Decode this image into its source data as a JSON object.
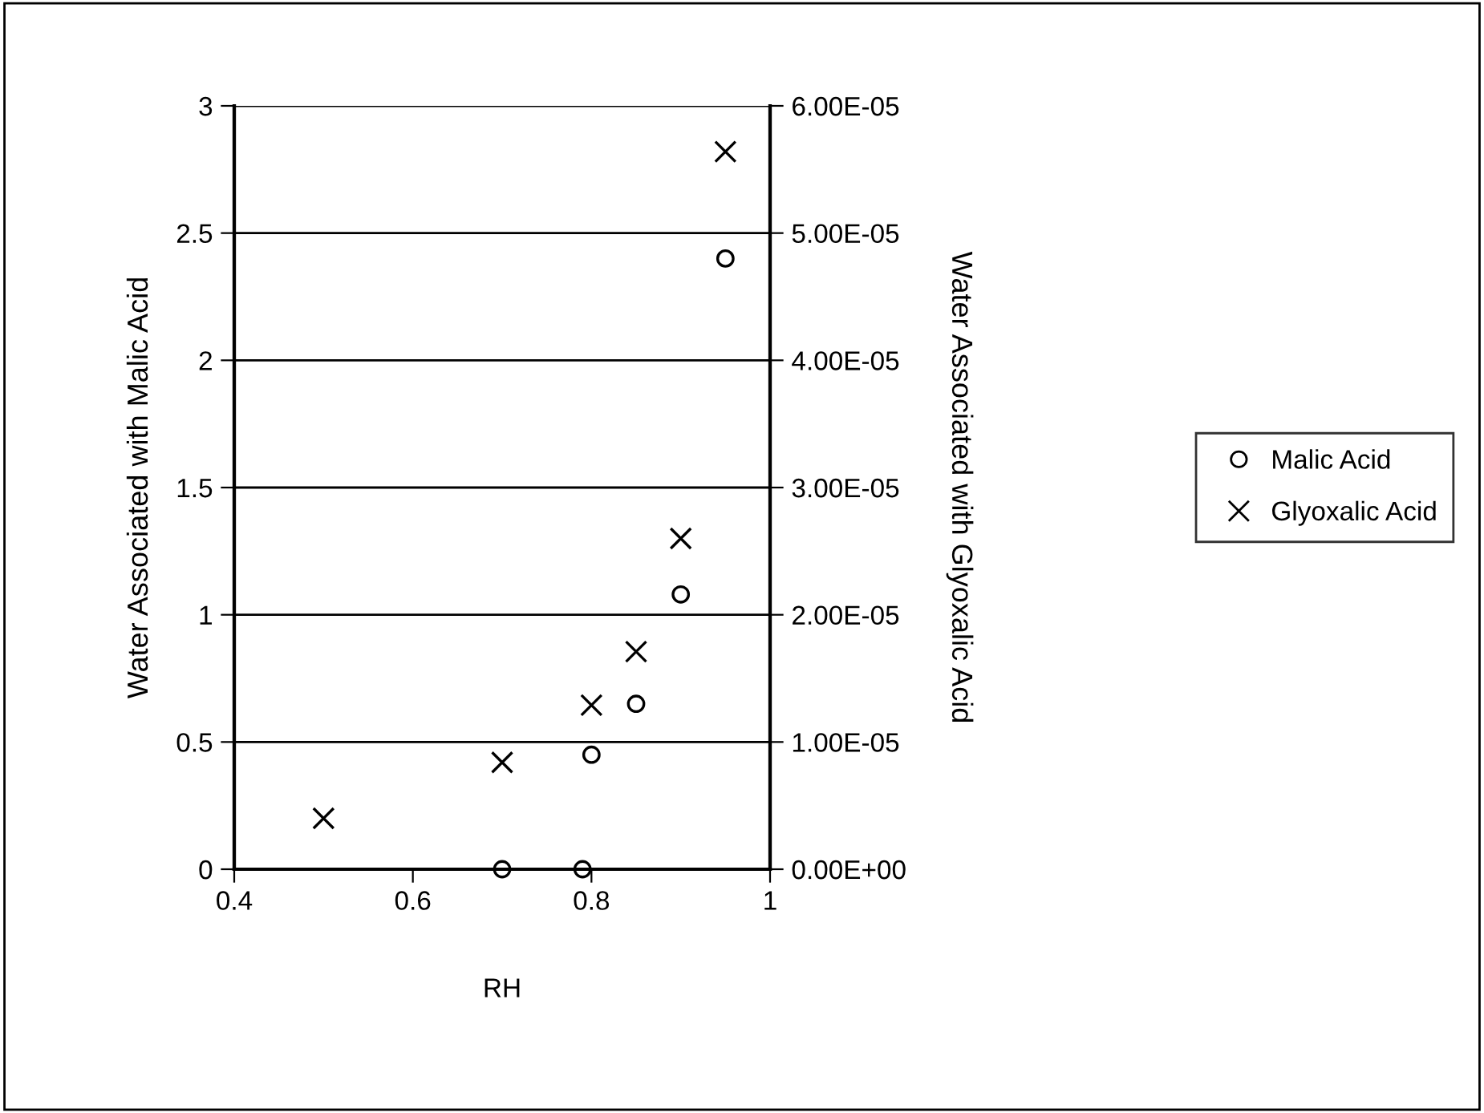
{
  "chart_data": {
    "type": "scatter",
    "xlabel": "RH",
    "ylabel": "Water Associated with Malic Acid",
    "y2label": "Water Associated with Glyoxalic Acid",
    "xlim": [
      0.4,
      1
    ],
    "xticks": [
      0.4,
      0.6,
      0.8,
      1
    ],
    "ylim": [
      0,
      3
    ],
    "yticks": [
      0,
      0.5,
      1,
      1.5,
      2,
      2.5,
      3
    ],
    "y2lim": [
      0,
      6e-05
    ],
    "y2ticks": [
      {
        "value": 0,
        "label": "0.00E+00"
      },
      {
        "value": 1e-05,
        "label": "1.00E-05"
      },
      {
        "value": 2e-05,
        "label": "2.00E-05"
      },
      {
        "value": 3e-05,
        "label": "3.00E-05"
      },
      {
        "value": 4e-05,
        "label": "4.00E-05"
      },
      {
        "value": 5e-05,
        "label": "5.00E-05"
      },
      {
        "value": 6e-05,
        "label": "6.00E-05"
      }
    ],
    "grid": "y",
    "legend": "right",
    "series": [
      {
        "name": "Malic Acid",
        "color": "#000000",
        "marker": "circle",
        "x": [
          0.7,
          0.79,
          0.8,
          0.85,
          0.9,
          0.95
        ],
        "values": [
          0,
          0,
          0.45,
          0.65,
          1.08,
          2.4
        ]
      },
      {
        "name": "Glyoxalic Acid",
        "color": "#000000",
        "marker": "cross",
        "axis": "y2",
        "x": [
          0.5,
          0.7,
          0.8,
          0.85,
          0.9,
          0.95
        ],
        "values": [
          4e-06,
          8.4e-06,
          1.29e-05,
          1.71e-05,
          2.6e-05,
          5.64e-05
        ]
      }
    ]
  }
}
